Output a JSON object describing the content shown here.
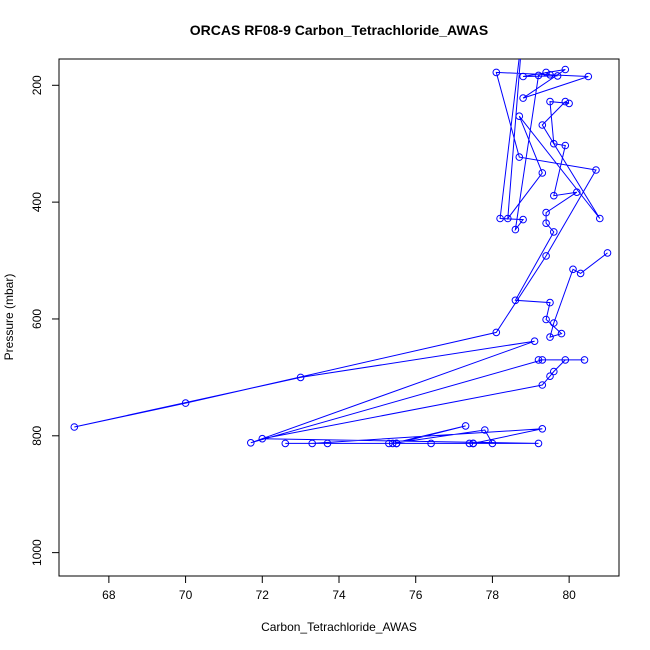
{
  "chart_data": {
    "type": "line",
    "title": "ORCAS RF08-9 Carbon_Tetrachloride_AWAS",
    "xlabel": "Carbon_Tetrachloride_AWAS",
    "ylabel": "Pressure (mbar)",
    "xlim": [
      66.7,
      81.3
    ],
    "ylim": [
      1040,
      155
    ],
    "y_reversed": true,
    "x_ticks": [
      68,
      70,
      72,
      74,
      76,
      78,
      80
    ],
    "y_ticks": [
      200,
      400,
      600,
      800,
      1000
    ],
    "grid": false,
    "series_color": "#0000ff",
    "marker": "open-circle",
    "series": [
      {
        "values": [
          [
            81.0,
            487
          ],
          [
            80.3,
            522
          ],
          [
            80.1,
            515
          ],
          [
            79.6,
            607
          ],
          [
            79.5,
            631
          ],
          [
            79.8,
            625
          ],
          [
            79.4,
            601
          ],
          [
            79.5,
            572
          ],
          [
            78.6,
            568
          ],
          [
            79.6,
            451
          ],
          [
            79.4,
            436
          ],
          [
            79.4,
            418
          ],
          [
            80.2,
            383
          ],
          [
            79.6,
            389
          ],
          [
            79.9,
            303
          ],
          [
            79.6,
            300
          ],
          [
            79.5,
            228
          ],
          [
            80.0,
            231
          ],
          [
            79.9,
            228
          ],
          [
            79.3,
            268
          ],
          [
            80.8,
            428
          ],
          [
            78.7,
            253
          ],
          [
            79.3,
            350
          ],
          [
            78.4,
            428
          ],
          [
            78.8,
            97
          ],
          [
            78.2,
            428
          ],
          [
            78.8,
            430
          ],
          [
            78.6,
            447
          ],
          [
            79.2,
            183
          ],
          [
            79.4,
            178
          ],
          [
            79.5,
            182
          ],
          [
            79.7,
            184
          ],
          [
            78.8,
            185
          ],
          [
            79.9,
            173
          ],
          [
            78.8,
            222
          ],
          [
            80.5,
            185
          ],
          [
            78.1,
            178
          ],
          [
            78.7,
            323
          ],
          [
            80.7,
            345
          ],
          [
            79.4,
            492
          ],
          [
            78.1,
            623
          ],
          [
            70.0,
            744
          ],
          [
            67.1,
            785
          ],
          [
            73.0,
            700
          ],
          [
            79.1,
            638
          ],
          [
            71.7,
            812
          ],
          [
            79.3,
            670
          ],
          [
            79.2,
            670
          ],
          [
            80.4,
            670
          ],
          [
            79.9,
            670
          ],
          [
            79.6,
            690
          ],
          [
            79.5,
            698
          ],
          [
            79.3,
            713
          ],
          [
            72.0,
            805
          ],
          [
            79.2,
            813
          ],
          [
            75.3,
            813
          ],
          [
            75.5,
            813
          ],
          [
            77.5,
            813
          ],
          [
            79.3,
            788
          ],
          [
            73.3,
            813
          ],
          [
            73.7,
            813
          ],
          [
            76.4,
            813
          ],
          [
            77.4,
            813
          ],
          [
            78.0,
            813
          ],
          [
            77.8,
            790
          ],
          [
            75.4,
            813
          ],
          [
            77.3,
            783
          ],
          [
            75.5,
            813
          ],
          [
            72.6,
            813
          ],
          [
            77.5,
            813
          ]
        ]
      }
    ]
  }
}
